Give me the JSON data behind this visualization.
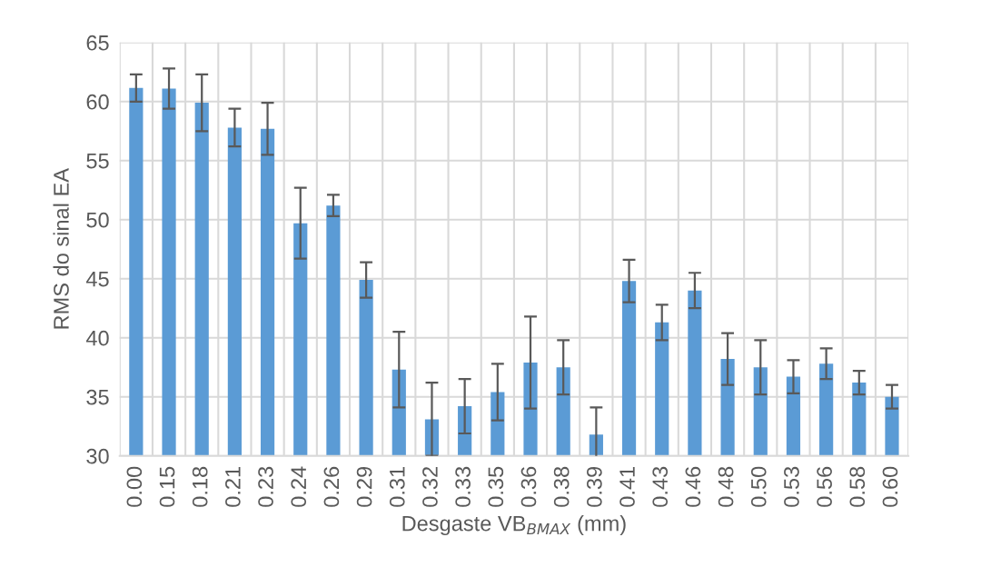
{
  "chart_data": {
    "type": "bar",
    "xlabel": "Desgaste VB$_{BMAX}$ (mm)",
    "ylabel": "RMS do sinal EA",
    "categories": [
      "0.00",
      "0.15",
      "0.18",
      "0.21",
      "0.23",
      "0.24",
      "0.26",
      "0.29",
      "0.31",
      "0.32",
      "0.33",
      "0.35",
      "0.36",
      "0.38",
      "0.39",
      "0.41",
      "0.43",
      "0.46",
      "0.48",
      "0.50",
      "0.53",
      "0.56",
      "0.58",
      "0.60"
    ],
    "values": [
      61.15,
      61.1,
      59.9,
      57.8,
      57.7,
      49.7,
      51.2,
      44.9,
      37.3,
      33.1,
      34.2,
      35.4,
      37.9,
      37.5,
      31.8,
      44.8,
      41.3,
      44.0,
      38.2,
      37.5,
      36.7,
      37.8,
      36.2,
      35.0
    ],
    "errors": [
      1.15,
      1.7,
      2.4,
      1.6,
      2.2,
      3.0,
      0.9,
      1.5,
      3.2,
      3.1,
      2.3,
      2.4,
      3.9,
      2.3,
      2.3,
      1.8,
      1.5,
      1.5,
      2.2,
      2.3,
      1.4,
      1.3,
      1.0,
      1.0
    ],
    "color": "#5b9bd5",
    "ylim": [
      30,
      65
    ],
    "yticks": [
      30,
      35,
      40,
      45,
      50,
      55,
      60,
      65
    ],
    "grid": true
  }
}
